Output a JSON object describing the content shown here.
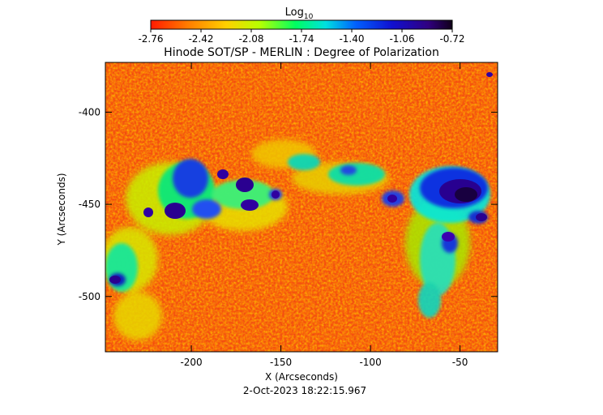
{
  "colorbar": {
    "label": "Log",
    "label_subscript": "10",
    "ticks": [
      "-2.76",
      "-2.42",
      "-2.08",
      "-1.74",
      "-1.40",
      "-1.06",
      "-0.72"
    ],
    "range": [
      -2.76,
      -0.72
    ]
  },
  "plot": {
    "title": "Hinode SOT/SP - MERLIN : Degree of Polarization",
    "xlabel": "X (Arcseconds)",
    "ylabel": "Y (Arcseconds)",
    "x_ticks": [
      "-200",
      "-150",
      "-100",
      "-50"
    ],
    "y_ticks": [
      "-400",
      "-450",
      "-500"
    ],
    "xlim": [
      -248,
      -29
    ],
    "ylim": [
      -530,
      -373
    ],
    "timestamp": "2-Oct-2023 18:22:15.967"
  },
  "colors": {
    "low": "#ff2a00",
    "high": "#1a0030"
  }
}
